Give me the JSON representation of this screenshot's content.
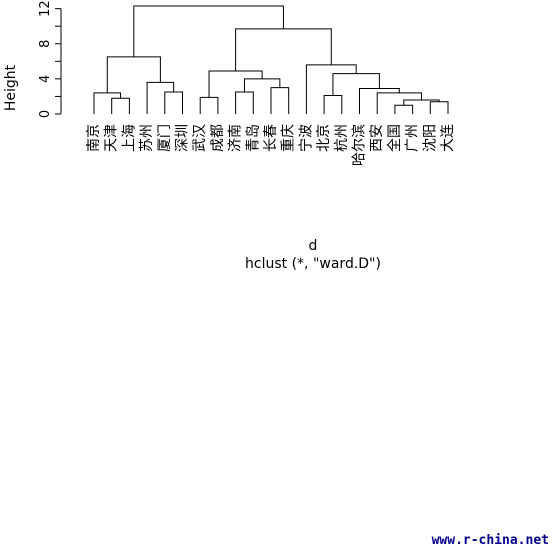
{
  "chart_data": {
    "type": "dendrogram",
    "title": "",
    "xlabel": "d",
    "sub": "hclust (*, \"ward.D\")",
    "ylabel": "Height",
    "yticks": [
      0,
      4,
      8,
      12
    ],
    "ylim": [
      0,
      12.3
    ],
    "leaves": [
      "南京",
      "天津",
      "上海",
      "苏州",
      "厦门",
      "深圳",
      "武汉",
      "成都",
      "济南",
      "青岛",
      "长春",
      "重庆",
      "宁波",
      "北京",
      "杭州",
      "哈尔滨",
      "西安",
      "全国",
      "广州",
      "沈阳",
      "大连"
    ],
    "merges": [
      {
        "id": "m1",
        "left": "L:全国",
        "right": "L:广州",
        "height": 1.0
      },
      {
        "id": "m2",
        "left": "L:沈阳",
        "right": "L:大连",
        "height": 1.4
      },
      {
        "id": "m3",
        "left": "m1",
        "right": "m2",
        "height": 1.6
      },
      {
        "id": "m4",
        "left": "L:天津",
        "right": "L:上海",
        "height": 1.8
      },
      {
        "id": "m5",
        "left": "L:武汉",
        "right": "L:成都",
        "height": 1.9
      },
      {
        "id": "m6",
        "left": "L:北京",
        "right": "L:杭州",
        "height": 2.1
      },
      {
        "id": "m7",
        "left": "L:厦门",
        "right": "L:深圳",
        "height": 2.5
      },
      {
        "id": "m8",
        "left": "L:济南",
        "right": "L:青岛",
        "height": 2.5
      },
      {
        "id": "m9",
        "left": "L:西安",
        "right": "m3",
        "height": 2.4
      },
      {
        "id": "m10",
        "left": "L:南京",
        "right": "m4",
        "height": 2.4
      },
      {
        "id": "m11",
        "left": "L:哈尔滨",
        "right": "m9",
        "height": 2.9
      },
      {
        "id": "m12",
        "left": "L:长春",
        "right": "L:重庆",
        "height": 3.0
      },
      {
        "id": "m13",
        "left": "L:苏州",
        "right": "m7",
        "height": 3.6
      },
      {
        "id": "m14",
        "left": "m8",
        "right": "m12",
        "height": 4.0
      },
      {
        "id": "m15",
        "left": "m6",
        "right": "m11",
        "height": 4.6
      },
      {
        "id": "m16",
        "left": "m5",
        "right": "m14",
        "height": 4.9
      },
      {
        "id": "m17",
        "left": "L:宁波",
        "right": "m15",
        "height": 5.6
      },
      {
        "id": "m18",
        "left": "m10",
        "right": "m13",
        "height": 6.5
      },
      {
        "id": "m19",
        "left": "m16",
        "right": "m17",
        "height": 9.7
      },
      {
        "id": "m20",
        "left": "m18",
        "right": "m19",
        "height": 12.3
      }
    ]
  },
  "footer": {
    "watermark": "www.r-china.net"
  }
}
